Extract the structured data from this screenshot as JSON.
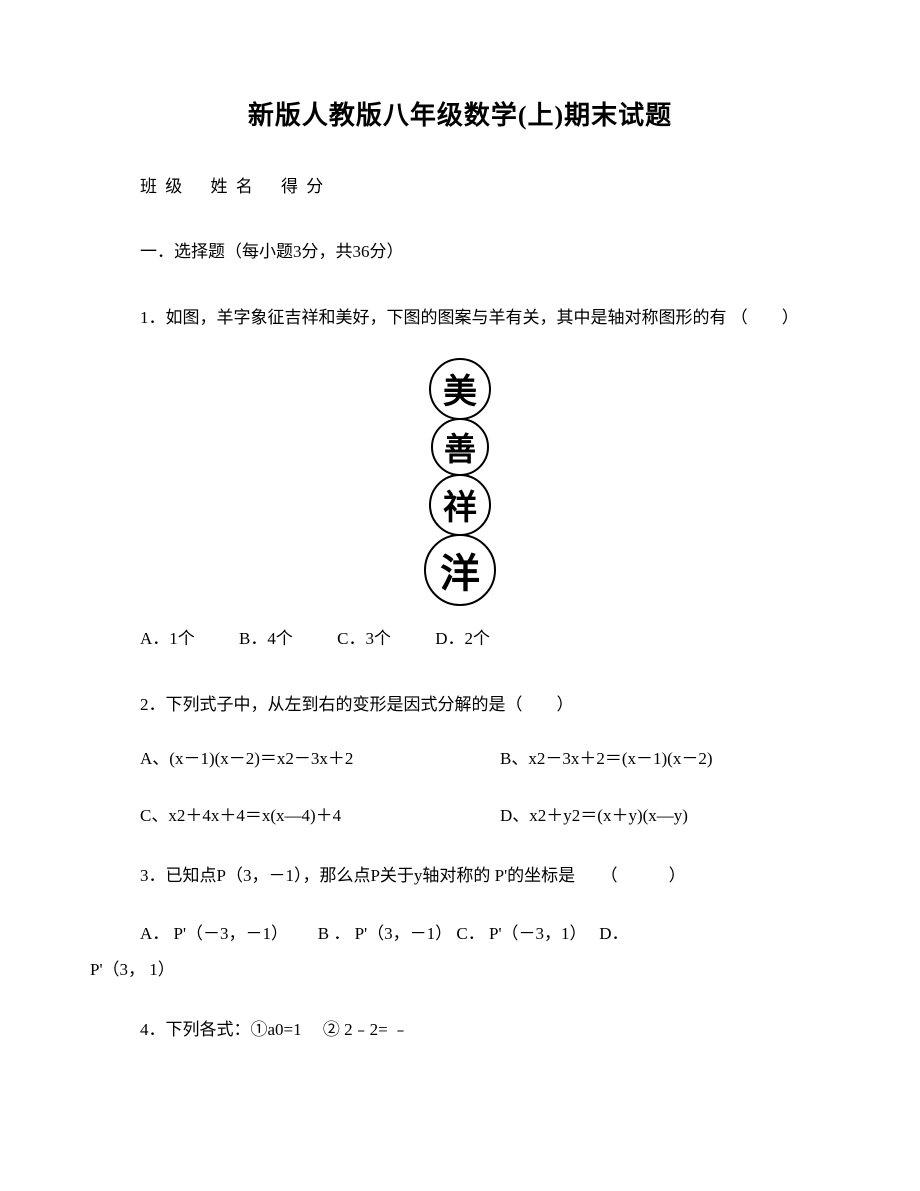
{
  "title": "新版人教版八年级数学(上)期末试题",
  "header": {
    "class_label": "班 级",
    "name_label": "姓 名",
    "score_label": "得 分"
  },
  "section1": {
    "title": "一．选择题（每小题3分，共36分）"
  },
  "q1": {
    "text": "1．如图，羊字象征吉祥和美好，下图的图案与羊有关，其中是轴对称图形的有 （　　）",
    "chars": [
      "美",
      "善",
      "祥",
      "洋"
    ],
    "opts": {
      "a": "A．1个",
      "b": "B．4个",
      "c": "C．3个",
      "d": "D．2个"
    }
  },
  "q2": {
    "text": "2．下列式子中，从左到右的变形是因式分解的是（　　）",
    "opts": {
      "a": "A、(x－1)(x－2)＝x2－3x＋2",
      "b": "B、x2－3x＋2＝(x－1)(x－2)",
      "c": "C、x2＋4x＋4＝x(x—4)＋4",
      "d": "D、x2＋y2＝(x＋y)(x—y)"
    }
  },
  "q3": {
    "text": "3．已知点P（3，－1），那么点P关于y轴对称的 P'的坐标是　　（　　　）",
    "line1": "A．  P'（－3，－1）　　 B ．  P'（3，－1）   C．  P'（－3，1）　 D．",
    "line2": "P'（3， 1）"
  },
  "q4": {
    "text": "4．下列各式：①a0=1 　② 2﹣2= ﹣"
  }
}
